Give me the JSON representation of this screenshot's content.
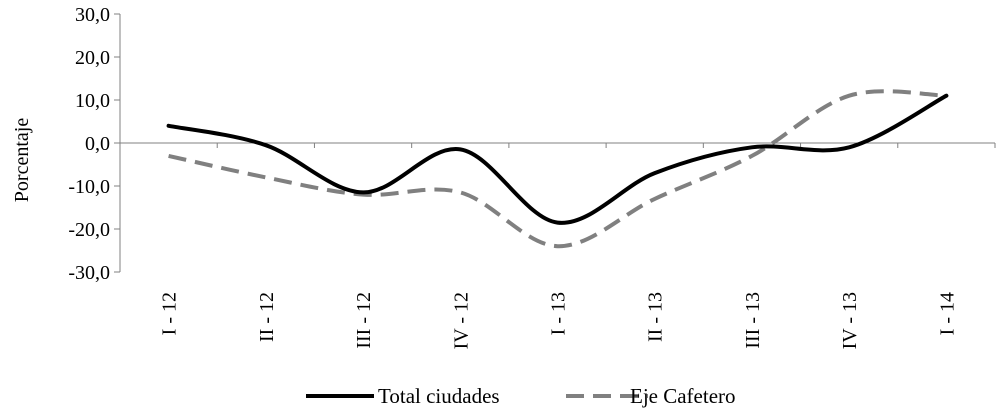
{
  "chart_data": {
    "type": "line",
    "title": "",
    "xlabel": "",
    "ylabel": "Porcentaje",
    "categories": [
      "I - 12",
      "II - 12",
      "III - 12",
      "IV - 12",
      "I - 13",
      "II - 13",
      "III - 13",
      "IV - 13",
      "I - 14"
    ],
    "ylim": [
      -30,
      30
    ],
    "yticks": [
      -30,
      -20,
      -10,
      0,
      10,
      20,
      30
    ],
    "ytick_labels": [
      "-30,0",
      "-20,0",
      "-10,0",
      "0,0",
      "10,0",
      "20,0",
      "30,0"
    ],
    "grid": false,
    "legend_position": "bottom",
    "series": [
      {
        "name": "Total ciudades",
        "values": [
          4.0,
          -0.5,
          -11.5,
          -1.5,
          -18.5,
          -7.0,
          -1.0,
          -1.0,
          11.0
        ],
        "color": "#000000",
        "style": "solid"
      },
      {
        "name": "Eje Cafetero",
        "values": [
          -3.0,
          -8.0,
          -12.0,
          -11.5,
          -24.0,
          -13.0,
          -3.0,
          11.0,
          11.0
        ],
        "color": "#808080",
        "style": "dashed"
      }
    ]
  }
}
